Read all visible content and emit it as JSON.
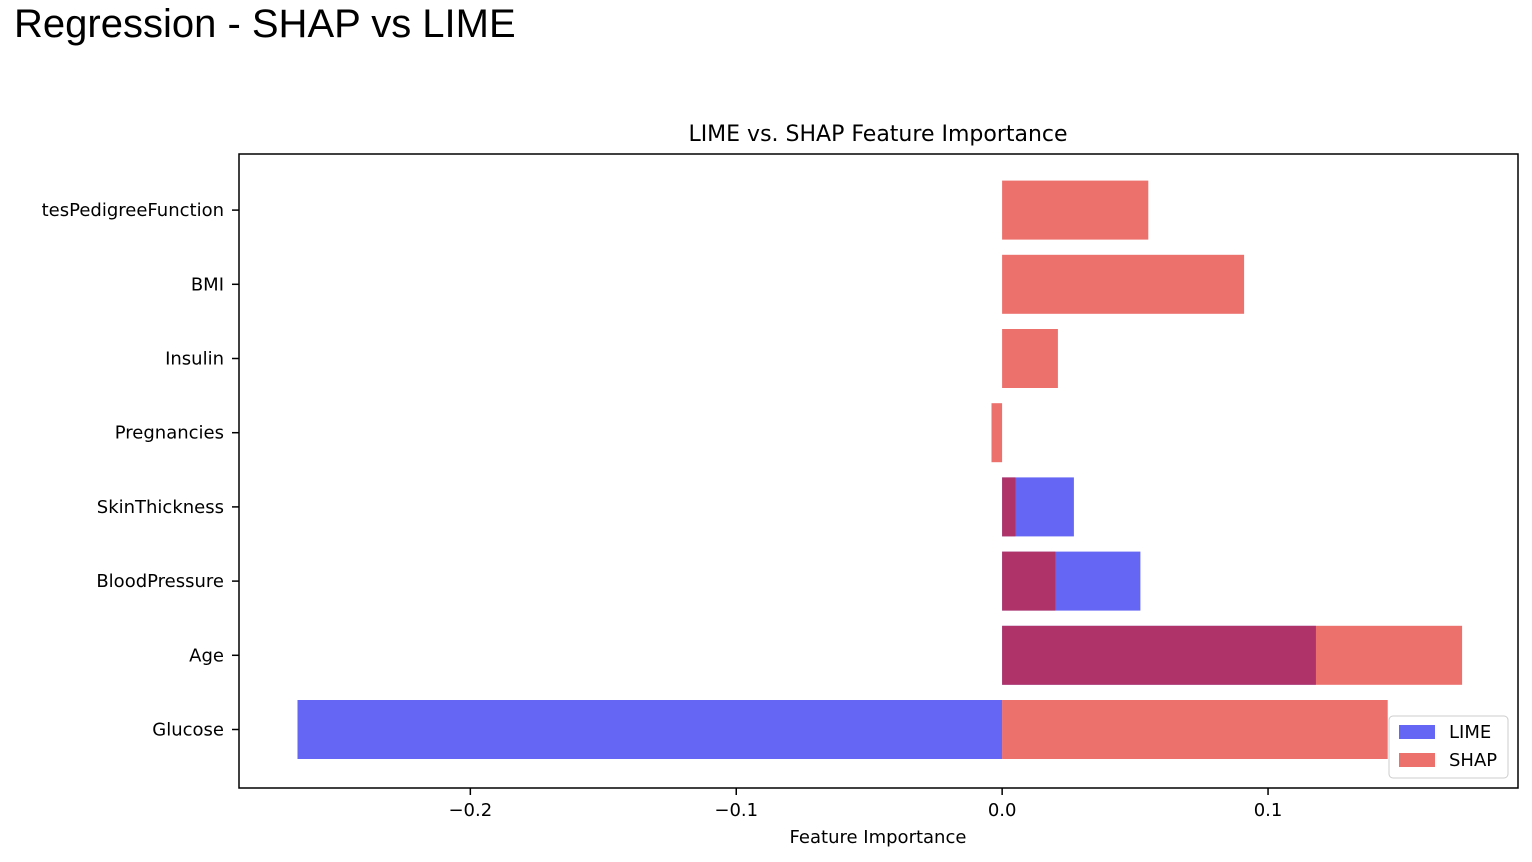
{
  "slide": {
    "title": "Regression - SHAP vs LIME"
  },
  "chart_data": {
    "type": "bar",
    "orientation": "horizontal",
    "title": "LIME vs. SHAP Feature Importance",
    "xlabel": "Feature Importance",
    "ylabel": "",
    "categories": [
      "Glucose",
      "Age",
      "BloodPressure",
      "SkinThickness",
      "Pregnancies",
      "Insulin",
      "BMI",
      "tesPedigreeFunction"
    ],
    "series": [
      {
        "name": "LIME",
        "color": "#0000ee",
        "opacity": 0.6,
        "values": [
          -0.265,
          0.118,
          0.052,
          0.027,
          0.0,
          0.0,
          0.0,
          0.0
        ]
      },
      {
        "name": "SHAP",
        "color": "#e0100a",
        "opacity": 0.6,
        "values": [
          0.145,
          0.173,
          0.02,
          0.005,
          -0.004,
          0.021,
          0.091,
          0.055
        ]
      }
    ],
    "xlim": [
      -0.287,
      0.194
    ],
    "xticks": [
      {
        "value": -0.2,
        "label": "−0.2"
      },
      {
        "value": -0.1,
        "label": "−0.1"
      },
      {
        "value": 0.0,
        "label": "0.0"
      },
      {
        "value": 0.1,
        "label": "0.1"
      }
    ],
    "grid": false,
    "legend_position": "lower-right"
  }
}
